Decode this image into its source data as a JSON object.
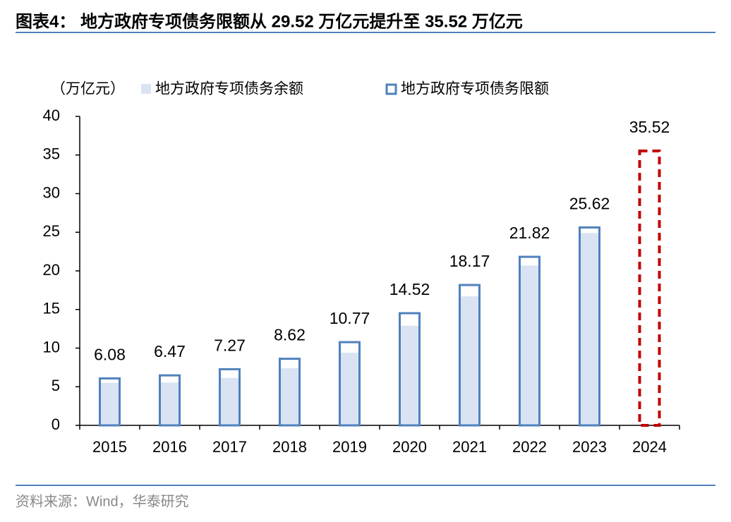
{
  "chart_data": {
    "type": "bar",
    "title": "图表4： 地方政府专项债务限额从 29.52 万亿元提升至 35.52 万亿元",
    "y_label": "（万亿元）",
    "source": "资料来源：Wind，华泰研究",
    "categories": [
      "2015",
      "2016",
      "2017",
      "2018",
      "2019",
      "2020",
      "2021",
      "2022",
      "2023",
      "2024"
    ],
    "series": [
      {
        "name": "地方政府专项债务余额",
        "color": "#dae3f3",
        "values": [
          5.5,
          5.55,
          6.15,
          7.4,
          9.4,
          12.9,
          16.7,
          20.7,
          24.9,
          null
        ]
      },
      {
        "name": "地方政府专项债务限额",
        "color": "#4f81bd",
        "highlight_color": "#c00000",
        "values": [
          6.08,
          6.47,
          7.27,
          8.62,
          10.77,
          14.52,
          18.17,
          21.82,
          25.62,
          35.52
        ],
        "point_styles": [
          "solid",
          "solid",
          "solid",
          "solid",
          "solid",
          "solid",
          "solid",
          "solid",
          "solid",
          "dashed"
        ]
      }
    ],
    "ylim": [
      0,
      40
    ],
    "yticks": [
      0,
      5,
      10,
      15,
      20,
      25,
      30,
      35,
      40
    ],
    "grid": false
  }
}
